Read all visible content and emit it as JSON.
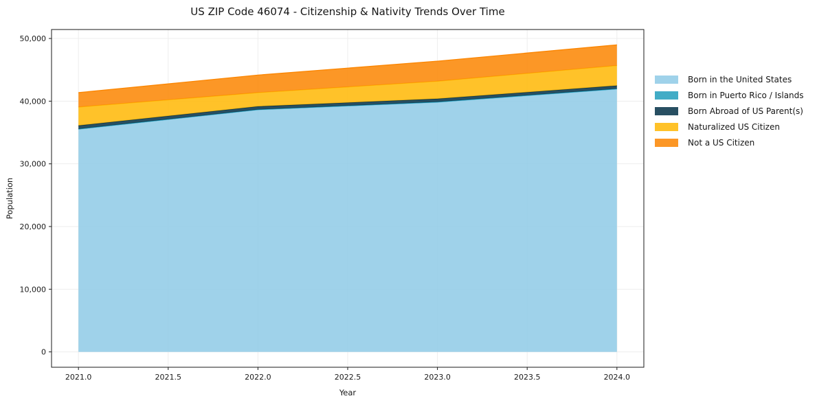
{
  "page": {
    "title": "US ZIP Code 46074 - Citizenship & Nativity Trends Over Time"
  },
  "chart_data": {
    "type": "area",
    "stacked": true,
    "title": "US ZIP Code 46074 - Citizenship & Nativity Trends Over Time",
    "xlabel": "Year",
    "ylabel": "Population",
    "x": [
      2021,
      2022,
      2023,
      2024
    ],
    "series": [
      {
        "name": "Born in the United States",
        "color": "#8ecae6",
        "values": [
          35500,
          38600,
          39800,
          41900
        ]
      },
      {
        "name": "Born in Puerto Rico / Islands",
        "color": "#219ebc",
        "values": [
          60,
          60,
          80,
          80
        ]
      },
      {
        "name": "Born Abroad of US Parent(s)",
        "color": "#023047",
        "values": [
          550,
          500,
          500,
          500
        ]
      },
      {
        "name": "Naturalized US Citizen",
        "color": "#ffb703",
        "values": [
          2950,
          2200,
          2800,
          3200
        ]
      },
      {
        "name": "Not a US Citizen",
        "color": "#fb8500",
        "values": [
          2300,
          2800,
          3200,
          3300
        ]
      }
    ],
    "totals": [
      41360,
      44160,
      46380,
      48980
    ],
    "fill_alpha": 0.85,
    "grid": true,
    "legend_position": "right",
    "xlim": [
      2020.85,
      2024.15
    ],
    "ylim": [
      -2449,
      51429
    ],
    "x_ticks": {
      "values": [
        2021.0,
        2021.5,
        2022.0,
        2022.5,
        2023.0,
        2023.5,
        2024.0
      ],
      "labels": [
        "2021.0",
        "2021.5",
        "2022.0",
        "2022.5",
        "2023.0",
        "2023.5",
        "2024.0"
      ]
    },
    "y_ticks": {
      "values": [
        0,
        10000,
        20000,
        30000,
        40000,
        50000
      ],
      "labels": [
        "0",
        "10,000",
        "20,000",
        "30,000",
        "40,000",
        "50,000"
      ]
    },
    "colors": {
      "spine": "#1a1a1a",
      "grid": "#ededed",
      "text": "#1a1a1a",
      "background": "#ffffff"
    }
  }
}
